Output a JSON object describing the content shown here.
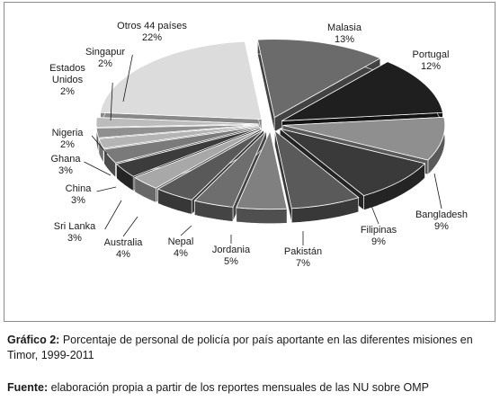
{
  "chart_data": {
    "type": "pie",
    "style": "3d-exploded",
    "slices": [
      {
        "label": "Malasia",
        "value": 13,
        "pct": "13%",
        "color": "#6b6b6b"
      },
      {
        "label": "Portugal",
        "value": 12,
        "pct": "12%",
        "color": "#1f1f1f"
      },
      {
        "label": "Bangladesh",
        "value": 9,
        "pct": "9%",
        "color": "#8f8f8f"
      },
      {
        "label": "Filipinas",
        "value": 9,
        "pct": "9%",
        "color": "#3a3a3a"
      },
      {
        "label": "Pakistán",
        "value": 7,
        "pct": "7%",
        "color": "#5a5a5a"
      },
      {
        "label": "Jordania",
        "value": 5,
        "pct": "5%",
        "color": "#808080"
      },
      {
        "label": "Nepal",
        "value": 4,
        "pct": "4%",
        "color": "#6e6e6e"
      },
      {
        "label": "Australia",
        "value": 4,
        "pct": "4%",
        "color": "#595959"
      },
      {
        "label": "Sri Lanka",
        "value": 3,
        "pct": "3%",
        "color": "#a8a8a8"
      },
      {
        "label": "China",
        "value": 3,
        "pct": "3%",
        "color": "#3c3c3c"
      },
      {
        "label": "Ghana",
        "value": 3,
        "pct": "3%",
        "color": "#7a7a7a"
      },
      {
        "label": "Nigeria",
        "value": 2,
        "pct": "2%",
        "color": "#b4b4b4"
      },
      {
        "label": "Estados Unidos",
        "value": 2,
        "pct": "2%",
        "color": "#909090"
      },
      {
        "label": "Singapur",
        "value": 2,
        "pct": "2%",
        "color": "#bcbcbc"
      },
      {
        "label": "Otros 44 países",
        "value": 22,
        "pct": "22%",
        "color": "#dcdcdc"
      }
    ]
  },
  "caption": {
    "label": "Gráfico 2:",
    "text": " Porcentaje de personal de policía por país aportante en las diferentes misiones en Timor, 1999-2011"
  },
  "source": {
    "label": "Fuente:",
    "text": " elaboración propia a partir de los reportes mensuales de las NU sobre OMP"
  }
}
